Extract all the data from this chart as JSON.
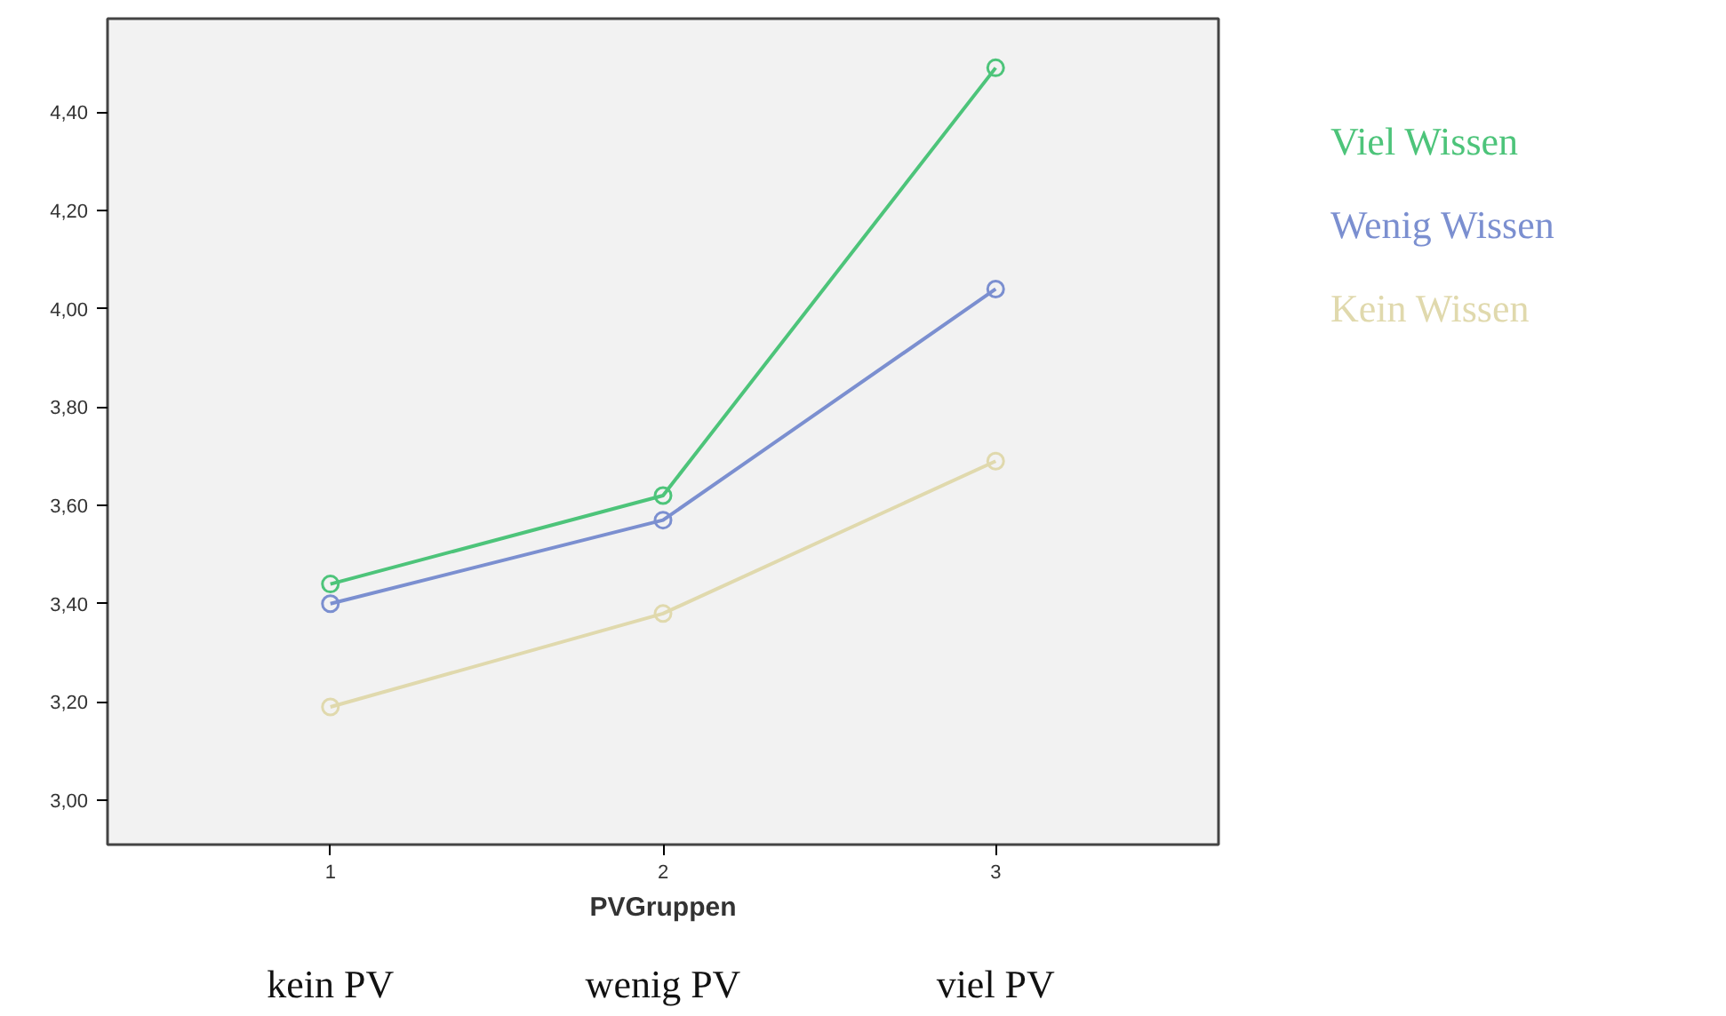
{
  "chart_data": {
    "type": "line",
    "xlabel": "PVGruppen",
    "x": [
      1,
      2,
      3
    ],
    "series": [
      {
        "name": "Viel Wissen",
        "color": "#4dc47a",
        "values": [
          3.44,
          3.62,
          4.49
        ]
      },
      {
        "name": "Wenig Wissen",
        "color": "#7b8fd0",
        "values": [
          3.4,
          3.57,
          4.04
        ]
      },
      {
        "name": "Kein Wissen",
        "color": "#e0d9ad",
        "values": [
          3.19,
          3.38,
          3.69
        ]
      }
    ],
    "xlim": [
      0.33,
      3.67
    ],
    "ylim": [
      2.91,
      4.59
    ],
    "xticks": [
      1,
      2,
      3
    ],
    "yticks": [
      {
        "value": 3.0,
        "label": "3,00"
      },
      {
        "value": 3.2,
        "label": "3,20"
      },
      {
        "value": 3.4,
        "label": "3,40"
      },
      {
        "value": 3.6,
        "label": "3,60"
      },
      {
        "value": 3.8,
        "label": "3,80"
      },
      {
        "value": 4.0,
        "label": "4,00"
      },
      {
        "value": 4.2,
        "label": "4,20"
      },
      {
        "value": 4.4,
        "label": "4,40"
      }
    ],
    "annotations": [
      "kein PV",
      "wenig PV",
      "viel PV"
    ],
    "marker": "circle",
    "line_style": "solid",
    "grid": false
  }
}
